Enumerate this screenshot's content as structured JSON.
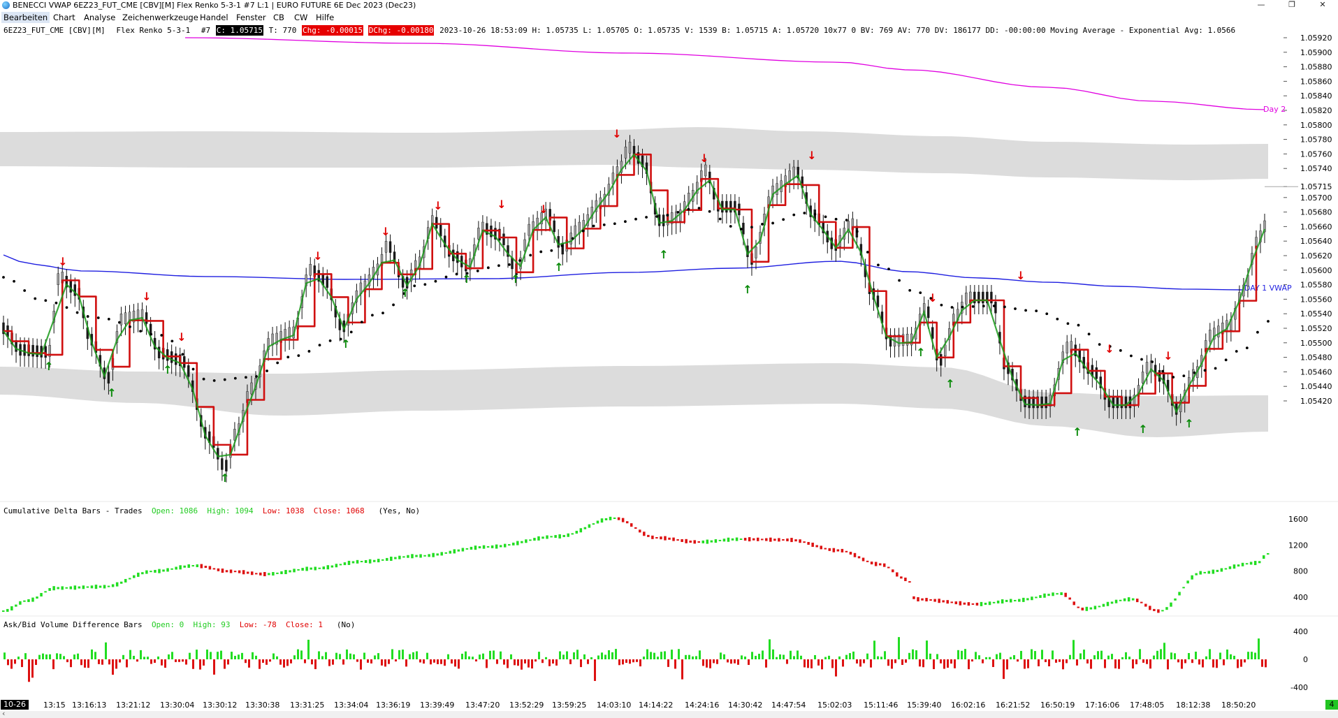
{
  "window": {
    "title": "BENECCI VWAP 6EZ23_FUT_CME [CBV][M]  Flex Renko 5-3-1  #7 L:1 | EURO FUTURE 6E Dec 2023 (Dec23)",
    "minimize": "—",
    "maximize": "❐",
    "close": "✕"
  },
  "menu": [
    "Bearbeiten",
    "Chart",
    "Analyse",
    "Zeichenwerkzeuge",
    "Handel",
    "Fenster",
    "CB",
    "CW",
    "Hilfe"
  ],
  "info": {
    "symbol": "6EZ23_FUT_CME [CBV][M]",
    "bartype": "Flex Renko 5-3-1",
    "number": "#7",
    "close": "C: 1.05715",
    "ticks": "T: 770",
    "chg": "Chg: -0.00015",
    "dchg": "DChg: -0.00180",
    "rest": "2023-10-26 18:53:09 H: 1.05735 L: 1.05705 O: 1.05735 V: 1539 B: 1.05715 A: 1.05720 10x77 0 BV: 769 AV: 770 DV: 186177 DD: -00:00:00 Moving Average - Exponential  Avg: 1.0566"
  },
  "price_axis": [
    "1.05920",
    "1.05900",
    "1.05880",
    "1.05860",
    "1.05840",
    "1.05820",
    "1.05800",
    "1.05780",
    "1.05760",
    "1.05740",
    "1.05715",
    "1.05700",
    "1.05680",
    "1.05660",
    "1.05640",
    "1.05620",
    "1.05600",
    "1.05580",
    "1.05560",
    "1.05540",
    "1.05520",
    "1.05500",
    "1.05480",
    "1.05460",
    "1.05440",
    "1.05420"
  ],
  "chart_labels": {
    "day2": "Day 2",
    "vwap": "DAY 1 VWAP"
  },
  "cumdelta": {
    "title": "Cumulative Delta Bars - Trades",
    "open": "Open: 1086",
    "high": "High: 1094",
    "low": "Low: 1038",
    "close": "Close: 1068",
    "params": "(Yes, No)",
    "axis": [
      "1600",
      "1200",
      "800",
      "400"
    ]
  },
  "askbid": {
    "title": "Ask/Bid Volume Difference Bars",
    "open": "Open: 0",
    "high": "High: 93",
    "low": "Low: -78",
    "close": "Close: 1",
    "params": "(No)",
    "axis": [
      "400",
      "0",
      "-400"
    ]
  },
  "time_axis": {
    "date": "10-26",
    "labels": [
      "13:15",
      "13:16:13",
      "13:21:12",
      "13:30:04",
      "13:30:12",
      "13:30:38",
      "13:31:25",
      "13:34:04",
      "13:36:19",
      "13:39:49",
      "13:47:20",
      "13:52:29",
      "13:59:25",
      "14:03:10",
      "14:14:22",
      "14:24:16",
      "14:30:42",
      "14:47:54",
      "15:02:03",
      "15:11:46",
      "15:39:40",
      "16:02:16",
      "16:21:52",
      "16:50:19",
      "17:16:06",
      "17:48:05",
      "18:12:38",
      "18:50:20"
    ],
    "end_badge": "4"
  },
  "colors": {
    "magenta": "#e000e0",
    "vwap": "#1f1fe0",
    "band": "#dcdcdc",
    "up": "#1a9a1a",
    "down": "#d01010",
    "delta_up": "#22dd22",
    "delta_down": "#dd1111"
  }
}
